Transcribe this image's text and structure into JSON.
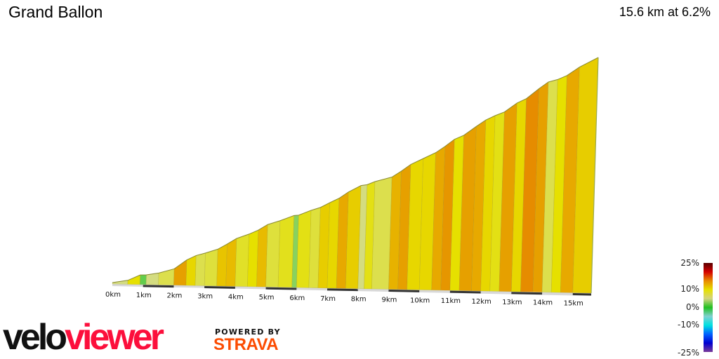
{
  "header": {
    "title": "Grand Ballon",
    "summary": "15.6 km at 6.2%"
  },
  "branding": {
    "logo_part1": "velo",
    "logo_part2": "viewer",
    "powered_by": "POWERED BY",
    "strava": "STRAVA"
  },
  "chart_data": {
    "type": "area",
    "title": "Grand Ballon",
    "distance_km": 15.6,
    "average_gradient_pct": 6.2,
    "x_ticks": [
      "0km",
      "1km",
      "2km",
      "3km",
      "4km",
      "5km",
      "6km",
      "7km",
      "8km",
      "9km",
      "10km",
      "11km",
      "12km",
      "13km",
      "14km",
      "15km"
    ],
    "segments": [
      {
        "from": 0,
        "to": 0.5,
        "gradient": 2
      },
      {
        "from": 0.5,
        "to": 0.9,
        "gradient": 5.5
      },
      {
        "from": 0.9,
        "to": 1.1,
        "gradient": 0.5
      },
      {
        "from": 1.1,
        "to": 1.5,
        "gradient": 2
      },
      {
        "from": 1.5,
        "to": 2,
        "gradient": 3.5
      },
      {
        "from": 2,
        "to": 2.4,
        "gradient": 9
      },
      {
        "from": 2.4,
        "to": 2.7,
        "gradient": 6
      },
      {
        "from": 2.7,
        "to": 3,
        "gradient": 3.5
      },
      {
        "from": 3,
        "to": 3.4,
        "gradient": 4
      },
      {
        "from": 3.4,
        "to": 3.7,
        "gradient": 7
      },
      {
        "from": 3.7,
        "to": 4,
        "gradient": 7.5
      },
      {
        "from": 4,
        "to": 4.4,
        "gradient": 4.5
      },
      {
        "from": 4.4,
        "to": 4.7,
        "gradient": 5.5
      },
      {
        "from": 4.7,
        "to": 5,
        "gradient": 7.5
      },
      {
        "from": 5,
        "to": 5.4,
        "gradient": 4
      },
      {
        "from": 5.4,
        "to": 5.85,
        "gradient": 4.8
      },
      {
        "from": 5.85,
        "to": 6,
        "gradient": 1
      },
      {
        "from": 6,
        "to": 6.4,
        "gradient": 5
      },
      {
        "from": 6.4,
        "to": 6.7,
        "gradient": 4
      },
      {
        "from": 6.7,
        "to": 7,
        "gradient": 6.5
      },
      {
        "from": 7,
        "to": 7.3,
        "gradient": 6
      },
      {
        "from": 7.3,
        "to": 7.6,
        "gradient": 8.5
      },
      {
        "from": 7.6,
        "to": 8,
        "gradient": 6.5
      },
      {
        "from": 8,
        "to": 8.2,
        "gradient": 2
      },
      {
        "from": 8.2,
        "to": 8.45,
        "gradient": 5
      },
      {
        "from": 8.45,
        "to": 9,
        "gradient": 3.5
      },
      {
        "from": 9,
        "to": 9.3,
        "gradient": 8
      },
      {
        "from": 9.3,
        "to": 9.6,
        "gradient": 9
      },
      {
        "from": 9.6,
        "to": 10,
        "gradient": 6
      },
      {
        "from": 10,
        "to": 10.4,
        "gradient": 6
      },
      {
        "from": 10.4,
        "to": 10.7,
        "gradient": 8.5
      },
      {
        "from": 10.7,
        "to": 11,
        "gradient": 9.5
      },
      {
        "from": 11,
        "to": 11.3,
        "gradient": 5.5
      },
      {
        "from": 11.3,
        "to": 11.7,
        "gradient": 9
      },
      {
        "from": 11.7,
        "to": 12,
        "gradient": 8.5
      },
      {
        "from": 12,
        "to": 12.3,
        "gradient": 6
      },
      {
        "from": 12.3,
        "to": 12.6,
        "gradient": 5
      },
      {
        "from": 12.6,
        "to": 13,
        "gradient": 9
      },
      {
        "from": 13,
        "to": 13.3,
        "gradient": 6
      },
      {
        "from": 13.3,
        "to": 13.7,
        "gradient": 10
      },
      {
        "from": 13.7,
        "to": 14,
        "gradient": 9
      },
      {
        "from": 14,
        "to": 14.3,
        "gradient": 3.5
      },
      {
        "from": 14.3,
        "to": 14.6,
        "gradient": 5.5
      },
      {
        "from": 14.6,
        "to": 15,
        "gradient": 8.5
      },
      {
        "from": 15,
        "to": 15.6,
        "gradient": 6.5
      }
    ],
    "legend": {
      "labels": [
        "25%",
        "10%",
        "0%",
        "-10%",
        "-25%"
      ],
      "colors": [
        "#5a0000",
        "#d40000",
        "#e88a00",
        "#e6e000",
        "#d4d480",
        "#20c020",
        "#80d0d0",
        "#00e0e0",
        "#0060ff",
        "#0000d0",
        "#7a3a9a"
      ]
    }
  }
}
